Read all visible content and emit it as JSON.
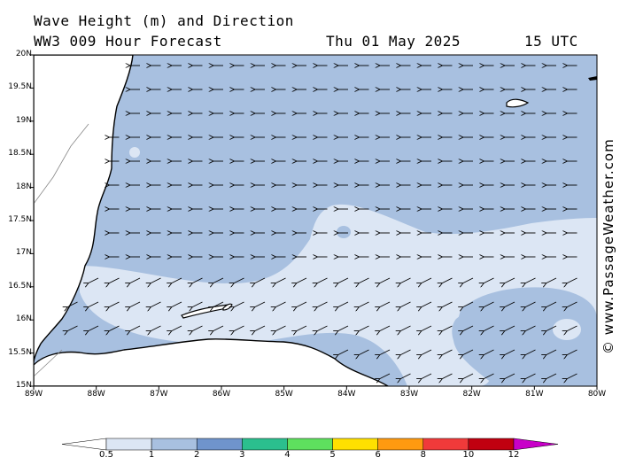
{
  "header": {
    "title": "Wave Height (m) and Direction",
    "model": "WW3 009 Hour Forecast",
    "date": "Thu 01 May 2025",
    "time": "15 UTC"
  },
  "credit": "© www.PassageWeather.com",
  "map": {
    "lat_labels": [
      "20N",
      "19.5N",
      "19N",
      "18.5N",
      "18N",
      "17.5N",
      "17N",
      "16.5N",
      "16N",
      "15.5N",
      "15N"
    ],
    "lon_labels": [
      "89W",
      "88W",
      "87W",
      "86W",
      "85W",
      "84W",
      "83W",
      "82W",
      "81W",
      "80W"
    ],
    "lat_range": [
      15,
      20
    ],
    "lon_range": [
      -89,
      -80
    ],
    "wave_direction": "westward",
    "colors": {
      "sea_1_2m": "#a8c0e0",
      "sea_0_5_1m": "#dce6f4",
      "land": "#ffffff",
      "coast": "#000000"
    }
  },
  "colorbar": {
    "labels": [
      "0.5",
      "1",
      "2",
      "3",
      "4",
      "5",
      "6",
      "8",
      "10",
      "12"
    ],
    "colors": [
      "#dce6f4",
      "#a8c0e0",
      "#6f94cc",
      "#2bbf8e",
      "#5ee05e",
      "#ffe000",
      "#ff9a10",
      "#f03a3a",
      "#c00010",
      "#c800c8"
    ]
  }
}
